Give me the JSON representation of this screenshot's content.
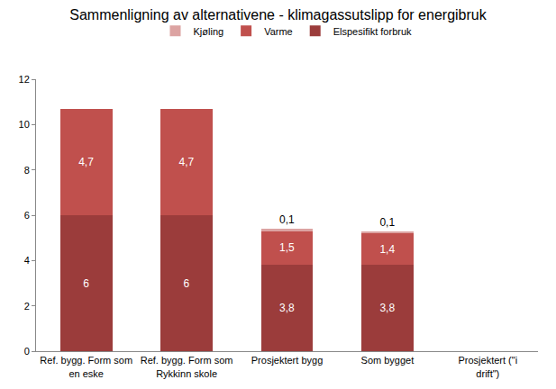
{
  "chart_data": {
    "type": "bar",
    "title": "Sammenligning av alternativene - klimagassutslipp for energibruk",
    "categories": [
      "Ref. bygg. Form som en eske",
      "Ref. bygg. Form som Rykkinn skole",
      "Prosjektert bygg",
      "Som bygget",
      "Prosjektert (\"i drift\")"
    ],
    "series": [
      {
        "name": "Elspesifikt forbruk",
        "color": "#9b3c3b",
        "values": [
          6,
          6,
          3.8,
          3.8,
          null
        ],
        "value_labels": [
          "6",
          "6",
          "3,8",
          "3,8",
          null
        ]
      },
      {
        "name": "Varme",
        "color": "#c0504d",
        "values": [
          4.7,
          4.7,
          1.5,
          1.4,
          null
        ],
        "value_labels": [
          "4,7",
          "4,7",
          "1,5",
          "1,4",
          null
        ]
      },
      {
        "name": "Kjøling",
        "color": "#dca3a2",
        "values": [
          null,
          null,
          0.1,
          0.1,
          null
        ],
        "value_labels": [
          null,
          null,
          "0,1",
          "0,1",
          null
        ]
      }
    ],
    "ylim": [
      0,
      12
    ],
    "yticks": [
      0,
      2,
      4,
      6,
      8,
      10,
      12
    ],
    "stacked": true,
    "data_labels": true,
    "grid": false,
    "legend": "top"
  }
}
